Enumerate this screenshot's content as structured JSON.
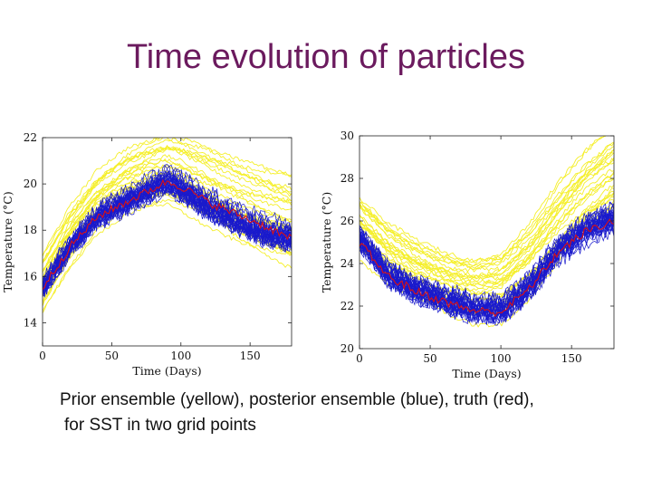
{
  "slide": {
    "title": "Time evolution of particles",
    "caption_line1": "Prior ensemble (yellow), posterior ensemble (blue), truth (red),",
    "caption_line2": "for SST in two grid points"
  },
  "colors": {
    "title": "#6b1a5e",
    "prior": "#f5ef2a",
    "posterior": "#1a1acc",
    "truth": "#dd1111"
  },
  "chart_data": [
    {
      "type": "line",
      "xlabel": "Time (Days)",
      "ylabel": "Temperature (°C)",
      "xlim": [
        0,
        180
      ],
      "ylim": [
        13,
        22
      ],
      "xticks": [
        0,
        50,
        100,
        150
      ],
      "yticks": [
        14,
        16,
        18,
        20,
        22
      ],
      "series": [
        {
          "name": "truth",
          "x": [
            0,
            20,
            40,
            60,
            80,
            90,
            100,
            120,
            140,
            160,
            180
          ],
          "values": [
            15.5,
            17.3,
            18.6,
            19.2,
            19.8,
            20.1,
            19.9,
            19.2,
            18.7,
            18.2,
            17.6
          ]
        },
        {
          "name": "posterior ensemble mean",
          "x": [
            0,
            20,
            40,
            60,
            80,
            90,
            100,
            120,
            140,
            160,
            180
          ],
          "values": [
            15.6,
            17.4,
            18.7,
            19.3,
            19.9,
            20.2,
            19.9,
            19.1,
            18.5,
            18.0,
            17.8
          ]
        },
        {
          "name": "prior ensemble mean",
          "x": [
            0,
            20,
            40,
            60,
            80,
            90,
            100,
            120,
            140,
            160,
            180
          ],
          "values": [
            15.8,
            17.8,
            19.3,
            20.1,
            20.5,
            20.6,
            20.4,
            19.8,
            19.2,
            18.7,
            18.3
          ]
        }
      ]
    },
    {
      "type": "line",
      "xlabel": "Time (Days)",
      "ylabel": "Temperature (°C)",
      "xlim": [
        0,
        180
      ],
      "ylim": [
        20,
        30
      ],
      "xticks": [
        0,
        50,
        100,
        150
      ],
      "yticks": [
        20,
        22,
        24,
        26,
        28,
        30
      ],
      "series": [
        {
          "name": "truth",
          "x": [
            0,
            20,
            40,
            60,
            80,
            100,
            120,
            140,
            160,
            180
          ],
          "values": [
            25.0,
            23.4,
            22.7,
            22.2,
            21.8,
            21.7,
            22.8,
            24.5,
            25.5,
            26.0
          ]
        },
        {
          "name": "posterior ensemble mean",
          "x": [
            0,
            20,
            40,
            60,
            80,
            100,
            120,
            140,
            160,
            180
          ],
          "values": [
            25.2,
            23.5,
            22.8,
            22.3,
            21.9,
            21.8,
            22.9,
            24.6,
            25.6,
            26.1
          ]
        },
        {
          "name": "prior ensemble mean",
          "x": [
            0,
            20,
            40,
            60,
            80,
            100,
            120,
            140,
            160,
            180
          ],
          "values": [
            25.8,
            24.6,
            23.8,
            23.2,
            22.8,
            22.9,
            24.0,
            25.6,
            27.0,
            28.0
          ]
        }
      ]
    }
  ]
}
